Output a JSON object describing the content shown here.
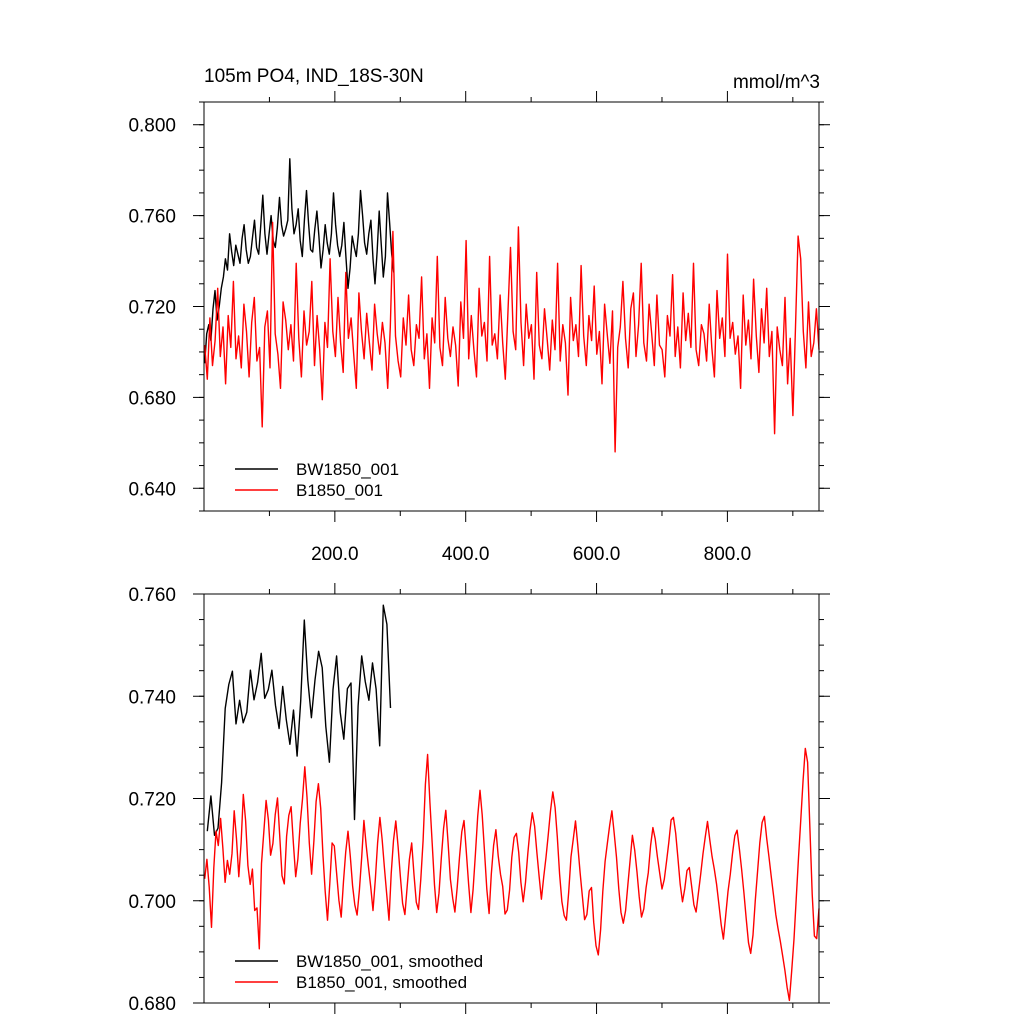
{
  "chart_data": [
    {
      "type": "line",
      "title": "105m PO4, IND_18S-30N",
      "units": "mmol/m^3",
      "xlim": [
        0,
        940
      ],
      "ylim": [
        0.63,
        0.81
      ],
      "x_ticks": [
        200,
        400,
        600,
        800
      ],
      "x_tick_labels": [
        "200.0",
        "400.0",
        "600.0",
        "800.0"
      ],
      "y_ticks": [
        0.64,
        0.68,
        0.72,
        0.76,
        0.8
      ],
      "y_tick_labels": [
        "0.640",
        "0.680",
        "0.720",
        "0.760",
        "0.800"
      ],
      "legend_position": "bottom-left",
      "series": [
        {
          "name": "BW1850_001",
          "color": "#000000",
          "x_start": 1,
          "x_end": 290,
          "values": [
            0.695,
            0.708,
            0.712,
            0.705,
            0.719,
            0.727,
            0.714,
            0.72,
            0.728,
            0.733,
            0.741,
            0.736,
            0.752,
            0.744,
            0.738,
            0.747,
            0.743,
            0.739,
            0.75,
            0.756,
            0.745,
            0.739,
            0.742,
            0.75,
            0.758,
            0.746,
            0.743,
            0.756,
            0.769,
            0.752,
            0.743,
            0.752,
            0.76,
            0.749,
            0.746,
            0.755,
            0.768,
            0.756,
            0.751,
            0.754,
            0.758,
            0.785,
            0.763,
            0.752,
            0.756,
            0.763,
            0.749,
            0.742,
            0.758,
            0.771,
            0.757,
            0.745,
            0.744,
            0.754,
            0.762,
            0.751,
            0.737,
            0.745,
            0.756,
            0.748,
            0.743,
            0.752,
            0.77,
            0.756,
            0.747,
            0.742,
            0.747,
            0.757,
            0.742,
            0.728,
            0.737,
            0.751,
            0.746,
            0.742,
            0.752,
            0.771,
            0.76,
            0.748,
            0.743,
            0.752,
            0.758,
            0.741,
            0.73,
            0.744,
            0.762,
            0.747,
            0.733,
            0.742,
            0.77,
            0.757,
            0.743,
            0.735
          ]
        },
        {
          "name": "B1850_001",
          "color": "#ff0000",
          "x_start": 1,
          "x_end": 940,
          "values": [
            0.703,
            0.688,
            0.715,
            0.694,
            0.705,
            0.728,
            0.698,
            0.711,
            0.686,
            0.716,
            0.702,
            0.731,
            0.697,
            0.707,
            0.693,
            0.721,
            0.709,
            0.689,
            0.713,
            0.724,
            0.696,
            0.702,
            0.667,
            0.711,
            0.718,
            0.693,
            0.757,
            0.708,
            0.699,
            0.684,
            0.722,
            0.714,
            0.701,
            0.712,
            0.696,
            0.739,
            0.706,
            0.689,
            0.718,
            0.703,
            0.709,
            0.731,
            0.694,
            0.716,
            0.701,
            0.679,
            0.713,
            0.702,
            0.741,
            0.709,
            0.698,
            0.724,
            0.704,
            0.691,
            0.735,
            0.706,
            0.715,
            0.699,
            0.684,
            0.726,
            0.709,
            0.697,
            0.717,
            0.704,
            0.692,
            0.721,
            0.708,
            0.699,
            0.713,
            0.704,
            0.684,
            0.711,
            0.753,
            0.707,
            0.696,
            0.689,
            0.715,
            0.703,
            0.725,
            0.701,
            0.694,
            0.712,
            0.706,
            0.733,
            0.697,
            0.708,
            0.684,
            0.715,
            0.704,
            0.742,
            0.702,
            0.694,
            0.724,
            0.706,
            0.698,
            0.711,
            0.703,
            0.685,
            0.722,
            0.706,
            0.749,
            0.697,
            0.716,
            0.701,
            0.689,
            0.728,
            0.707,
            0.713,
            0.696,
            0.742,
            0.703,
            0.708,
            0.697,
            0.725,
            0.704,
            0.688,
            0.717,
            0.746,
            0.709,
            0.701,
            0.755,
            0.713,
            0.694,
            0.721,
            0.706,
            0.712,
            0.688,
            0.735,
            0.703,
            0.697,
            0.719,
            0.706,
            0.692,
            0.714,
            0.701,
            0.739,
            0.696,
            0.712,
            0.704,
            0.681,
            0.724,
            0.705,
            0.712,
            0.698,
            0.738,
            0.707,
            0.694,
            0.716,
            0.705,
            0.729,
            0.699,
            0.709,
            0.686,
            0.721,
            0.708,
            0.695,
            0.718,
            0.656,
            0.702,
            0.711,
            0.731,
            0.706,
            0.693,
            0.719,
            0.726,
            0.698,
            0.712,
            0.739,
            0.704,
            0.696,
            0.721,
            0.708,
            0.694,
            0.725,
            0.703,
            0.701,
            0.689,
            0.716,
            0.707,
            0.734,
            0.698,
            0.711,
            0.693,
            0.726,
            0.705,
            0.717,
            0.702,
            0.739,
            0.701,
            0.694,
            0.712,
            0.708,
            0.696,
            0.721,
            0.702,
            0.689,
            0.727,
            0.706,
            0.715,
            0.698,
            0.743,
            0.706,
            0.713,
            0.699,
            0.707,
            0.684,
            0.725,
            0.703,
            0.714,
            0.697,
            0.732,
            0.707,
            0.691,
            0.719,
            0.704,
            0.728,
            0.698,
            0.709,
            0.664,
            0.711,
            0.701,
            0.694,
            0.724,
            0.686,
            0.706,
            0.672,
            0.711,
            0.751,
            0.741,
            0.709,
            0.693,
            0.722,
            0.698,
            0.704,
            0.719,
            0.701
          ]
        }
      ]
    },
    {
      "type": "line",
      "xlim": [
        0,
        940
      ],
      "ylim": [
        0.68,
        0.76
      ],
      "y_ticks": [
        0.68,
        0.7,
        0.72,
        0.74,
        0.76
      ],
      "y_tick_labels": [
        "0.680",
        "0.700",
        "0.720",
        "0.740",
        "0.760"
      ],
      "legend_position": "bottom-left",
      "series": [
        {
          "name": "BW1850_001, smoothed",
          "color": "#000000",
          "x_start": 5,
          "x_end": 285,
          "values": [
            0.7136,
            0.7205,
            0.7128,
            0.7142,
            0.7231,
            0.7376,
            0.7423,
            0.7449,
            0.7346,
            0.7392,
            0.7348,
            0.7369,
            0.7451,
            0.7393,
            0.7427,
            0.7484,
            0.7396,
            0.7413,
            0.7451,
            0.7382,
            0.7337,
            0.7419,
            0.7354,
            0.7306,
            0.7373,
            0.7283,
            0.7391,
            0.7549,
            0.7432,
            0.7358,
            0.7432,
            0.7488,
            0.7456,
            0.7341,
            0.7271,
            0.7413,
            0.7479,
            0.7369,
            0.7316,
            0.7415,
            0.7426,
            0.7159,
            0.7381,
            0.7479,
            0.7428,
            0.7392,
            0.7465,
            0.7414,
            0.7303,
            0.7578,
            0.7541,
            0.7377
          ]
        },
        {
          "name": "B1850_001, smoothed",
          "color": "#ff0000",
          "x_start": 1,
          "x_end": 940,
          "values": [
            0.7043,
            0.7081,
            0.7027,
            0.6948,
            0.7064,
            0.7136,
            0.7108,
            0.7161,
            0.7102,
            0.7036,
            0.7079,
            0.7052,
            0.7092,
            0.7176,
            0.7121,
            0.7047,
            0.7113,
            0.7208,
            0.7157,
            0.7069,
            0.7032,
            0.7062,
            0.6981,
            0.6986,
            0.6906,
            0.7073,
            0.7134,
            0.7196,
            0.7158,
            0.7089,
            0.7112,
            0.7168,
            0.7201,
            0.7128,
            0.7049,
            0.7033,
            0.7126,
            0.7167,
            0.7184,
            0.7112,
            0.7047,
            0.7082,
            0.7151,
            0.7199,
            0.7262,
            0.7203,
            0.7113,
            0.7052,
            0.7117,
            0.7194,
            0.7229,
            0.7181,
            0.7088,
            0.7018,
            0.6962,
            0.7034,
            0.7113,
            0.7107,
            0.7054,
            0.7001,
            0.6968,
            0.7038,
            0.7095,
            0.7136,
            0.7087,
            0.7029,
            0.6992,
            0.6972,
            0.7021,
            0.7085,
            0.7157,
            0.7108,
            0.7066,
            0.7026,
            0.6981,
            0.7041,
            0.7113,
            0.7163,
            0.7121,
            0.7065,
            0.7013,
            0.6962,
            0.7053,
            0.7118,
            0.7156,
            0.7106,
            0.7049,
            0.6995,
            0.6973,
            0.7028,
            0.7081,
            0.7113,
            0.7051,
            0.6997,
            0.6983,
            0.7042,
            0.7118,
            0.7228,
            0.7286,
            0.7193,
            0.7112,
            0.7031,
            0.6977,
            0.7015,
            0.7083,
            0.7142,
            0.7177,
            0.7113,
            0.7042,
            0.7005,
            0.6978,
            0.7026,
            0.7085,
            0.7135,
            0.7157,
            0.7096,
            0.7033,
            0.6977,
            0.7022,
            0.7091,
            0.7165,
            0.7216,
            0.7168,
            0.7097,
            0.7023,
            0.6975,
            0.7052,
            0.7108,
            0.7139,
            0.7088,
            0.7052,
            0.7028,
            0.6974,
            0.6982,
            0.7021,
            0.7085,
            0.7124,
            0.7132,
            0.7095,
            0.7036,
            0.6998,
            0.7036,
            0.7092,
            0.7138,
            0.7172,
            0.7146,
            0.7094,
            0.7048,
            0.7003,
            0.7046,
            0.7085,
            0.7128,
            0.7176,
            0.7213,
            0.7182,
            0.7125,
            0.7052,
            0.6998,
            0.6971,
            0.6962,
            0.7017,
            0.7086,
            0.7121,
            0.7156,
            0.7108,
            0.7055,
            0.7008,
            0.6963,
            0.6973,
            0.7019,
            0.7026,
            0.6958,
            0.6912,
            0.6894,
            0.6943,
            0.7018,
            0.7077,
            0.7113,
            0.7148,
            0.7176,
            0.7132,
            0.7085,
            0.7023,
            0.6977,
            0.6956,
            0.6981,
            0.7032,
            0.7079,
            0.7128,
            0.7099,
            0.7056,
            0.7008,
            0.6968,
            0.6984,
            0.7026,
            0.7055,
            0.7108,
            0.7143,
            0.7121,
            0.7086,
            0.7054,
            0.7023,
            0.7042,
            0.7078,
            0.7114,
            0.7158,
            0.7163,
            0.7132,
            0.7084,
            0.7032,
            0.6998,
            0.7024,
            0.7059,
            0.7065,
            0.7029,
            0.6992,
            0.6978,
            0.7015,
            0.7052,
            0.7092,
            0.7124,
            0.7155,
            0.7119,
            0.7086,
            0.7062,
            0.7032,
            0.6993,
            0.6953,
            0.6925,
            0.6971,
            0.7018,
            0.7052,
            0.7092,
            0.7127,
            0.7138,
            0.7101,
            0.7062,
            0.7016,
            0.6965,
            0.6918,
            0.6897,
            0.6933,
            0.7001,
            0.7058,
            0.7113,
            0.7153,
            0.7165,
            0.7122,
            0.7087,
            0.7048,
            0.7011,
            0.6973,
            0.6946,
            0.6921,
            0.6893,
            0.6864,
            0.6831,
            0.6805,
            0.6863,
            0.6925,
            0.7003,
            0.7084,
            0.7159,
            0.7236,
            0.7298,
            0.7271,
            0.7142,
            0.7013,
            0.6931,
            0.6926,
            0.6985
          ]
        }
      ]
    }
  ]
}
